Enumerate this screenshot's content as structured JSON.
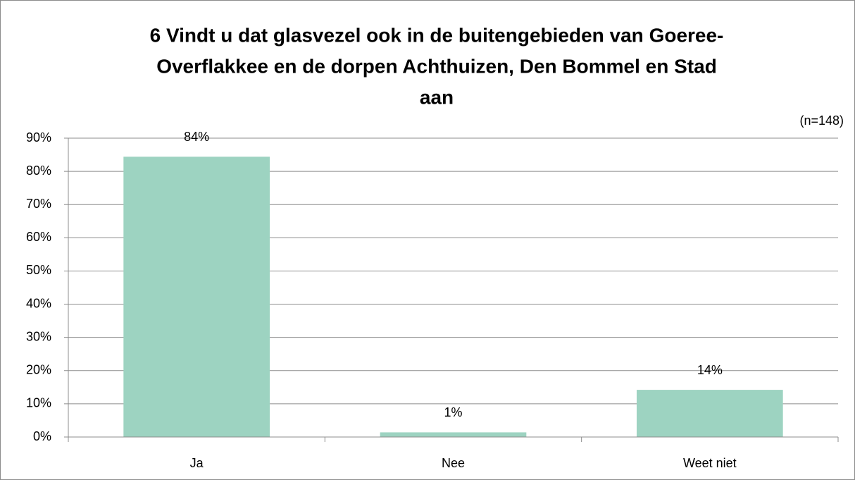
{
  "chart_data": {
    "type": "bar",
    "title": [
      "6 Vindt u dat glasvezel ook in de buitengebieden van Goeree-",
      "Overflakkee en de dorpen Achthuizen, Den Bommel en Stad",
      "aan"
    ],
    "annotation": "(n=148)",
    "categories": [
      "Ja",
      "Nee",
      "Weet niet"
    ],
    "values": [
      84.4,
      1.4,
      14.2
    ],
    "value_labels": [
      "84%",
      "1%",
      "14%"
    ],
    "color": "#9dd3c1",
    "ylim": [
      0,
      90
    ],
    "yticks": [
      {
        "value": 0,
        "label": "0%"
      },
      {
        "value": 10,
        "label": "10%"
      },
      {
        "value": 20,
        "label": "20%"
      },
      {
        "value": 30,
        "label": "30%"
      },
      {
        "value": 40,
        "label": "40%"
      },
      {
        "value": 50,
        "label": "50%"
      },
      {
        "value": 60,
        "label": "60%"
      },
      {
        "value": 70,
        "label": "70%"
      },
      {
        "value": 80,
        "label": "80%"
      },
      {
        "value": 90,
        "label": "90%"
      }
    ],
    "grid": true
  }
}
